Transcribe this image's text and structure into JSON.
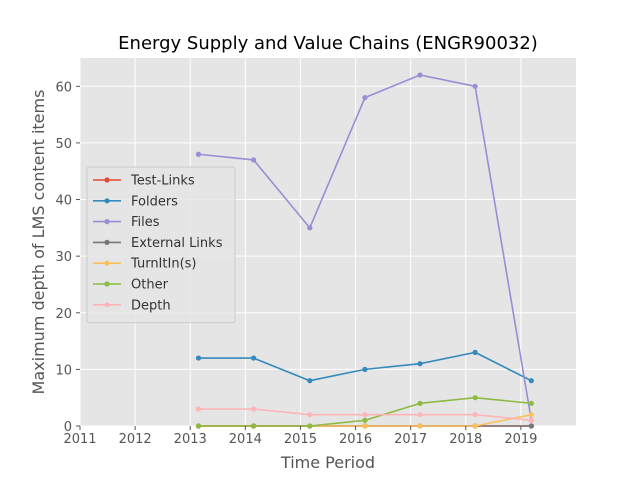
{
  "chart_data": {
    "type": "line",
    "title": "Energy Supply and Value Chains (ENGR90032)",
    "xlabel": "Time Period",
    "ylabel": "Maximum depth of LMS content items",
    "xlim": [
      2011,
      2020
    ],
    "ylim": [
      0,
      65
    ],
    "x_ticks": [
      "2011",
      "2012",
      "2013",
      "2014",
      "2015",
      "2016",
      "2017",
      "2018",
      "2019"
    ],
    "y_ticks": [
      "0",
      "10",
      "20",
      "30",
      "40",
      "50",
      "60"
    ],
    "x": [
      2013.15,
      2014.15,
      2015.17,
      2016.17,
      2017.17,
      2018.17,
      2019.19
    ],
    "legend_position": "center-left",
    "grid": true,
    "series": [
      {
        "name": "Test-Links",
        "color": "#e24a33",
        "values": [
          0,
          0,
          0,
          0,
          0,
          0,
          0
        ]
      },
      {
        "name": "Folders",
        "color": "#348abd",
        "values": [
          12,
          12,
          8,
          10,
          11,
          13,
          8
        ]
      },
      {
        "name": "Files",
        "color": "#988ed5",
        "values": [
          48,
          47,
          35,
          58,
          62,
          60,
          1
        ]
      },
      {
        "name": "External Links",
        "color": "#777777",
        "values": [
          0,
          0,
          0,
          0,
          0,
          0,
          0
        ]
      },
      {
        "name": "TurnItIn(s)",
        "color": "#fbc15e",
        "values": [
          0,
          0,
          0,
          0,
          0,
          0,
          2
        ]
      },
      {
        "name": "Other",
        "color": "#8eba42",
        "values": [
          0,
          0,
          0,
          1,
          4,
          5,
          4
        ]
      },
      {
        "name": "Depth",
        "color": "#ffb5b8",
        "values": [
          3,
          3,
          2,
          2,
          2,
          2,
          1
        ]
      }
    ]
  }
}
